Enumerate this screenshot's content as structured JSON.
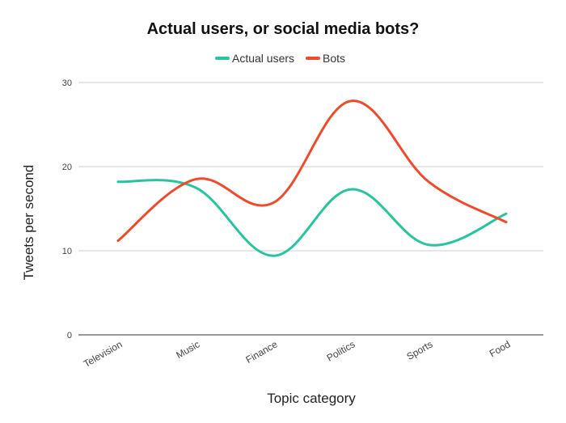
{
  "chart_data": {
    "type": "line",
    "title": "Actual users, or social media bots?",
    "xlabel": "Topic category",
    "ylabel": "Tweets per second",
    "categories": [
      "Television",
      "Music",
      "Finance",
      "Politics",
      "Sports",
      "Food"
    ],
    "ylim": [
      0,
      30
    ],
    "yticks": [
      0,
      10,
      20,
      30
    ],
    "grid": true,
    "legend_position": "top",
    "smooth": true,
    "series": [
      {
        "name": "Actual users",
        "color": "#26c5a0",
        "values": [
          18.2,
          17.5,
          9.4,
          17.3,
          10.7,
          14.4
        ]
      },
      {
        "name": "Bots",
        "color": "#f2492b",
        "values": [
          11.2,
          18.5,
          15.7,
          27.8,
          18.2,
          13.4
        ]
      }
    ]
  }
}
